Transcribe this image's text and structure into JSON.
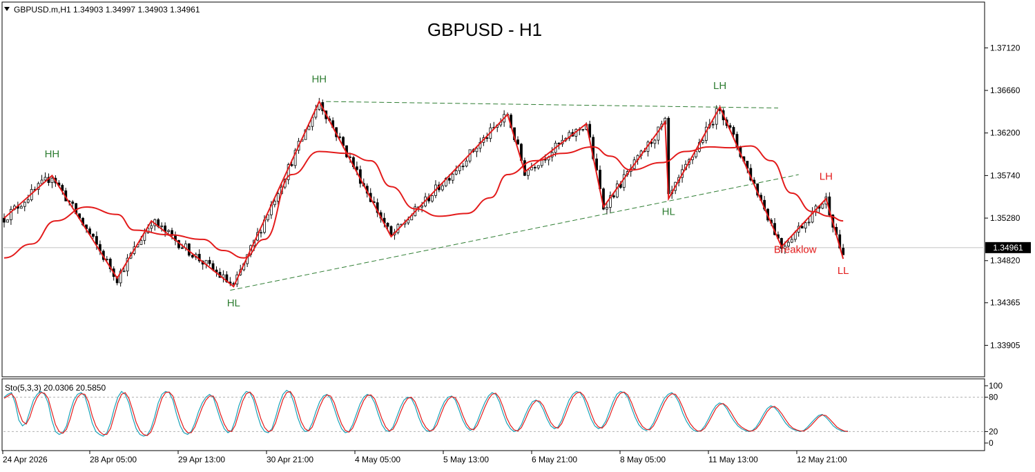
{
  "header": {
    "symbol_info": "GBPUSD.m,H1  1.34903 1.34997 1.34903 1.34961",
    "collapse_icon": "triangle-down-icon"
  },
  "chart_data": [
    {
      "type": "candlestick",
      "title": "GBPUSD - H1",
      "ylim": [
        1.3358,
        1.376
      ],
      "y_ticks": [
        "1.37120",
        "1.36660",
        "1.36200",
        "1.35740",
        "1.35280",
        "1.34820",
        "1.34365",
        "1.33905"
      ],
      "x_ticks": [
        "24 Apr 2026",
        "28 Apr 05:00",
        "29 Apr 13:00",
        "30 Apr 21:00",
        "4 May 05:00",
        "5 May 13:00",
        "6 May 21:00",
        "8 May 05:00",
        "11 May 13:00",
        "12 May 21:00"
      ],
      "bar_count": 245,
      "current_price": "1.34961",
      "current_price_value": 1.34961,
      "colors": {
        "candle": "#000000",
        "zigzag": "#e31b1b",
        "moving_average": "#e31b1b",
        "trendline": "#2e7d32",
        "bullish_label": "#2e7d32",
        "bearish_label": "#e31b1b",
        "price_line": "#c0c0c0"
      },
      "zigzag": [
        {
          "bar": 0,
          "price": 1.3528
        },
        {
          "bar": 14,
          "price": 1.3574
        },
        {
          "bar": 33,
          "price": 1.3463
        },
        {
          "bar": 43,
          "price": 1.3525
        },
        {
          "bar": 67,
          "price": 1.3454
        },
        {
          "bar": 92,
          "price": 1.3654
        },
        {
          "bar": 113,
          "price": 1.3508
        },
        {
          "bar": 147,
          "price": 1.364
        },
        {
          "bar": 152,
          "price": 1.3578
        },
        {
          "bar": 170,
          "price": 1.363
        },
        {
          "bar": 175,
          "price": 1.354
        },
        {
          "bar": 193,
          "price": 1.3632
        },
        {
          "bar": 194,
          "price": 1.3549
        },
        {
          "bar": 209,
          "price": 1.3648
        },
        {
          "bar": 227,
          "price": 1.3497
        },
        {
          "bar": 240,
          "price": 1.3549
        },
        {
          "bar": 245,
          "price": 1.3484
        }
      ],
      "moving_average": [
        {
          "bar": 0,
          "price": 1.3485
        },
        {
          "bar": 8,
          "price": 1.35
        },
        {
          "bar": 15,
          "price": 1.3525
        },
        {
          "bar": 24,
          "price": 1.354
        },
        {
          "bar": 33,
          "price": 1.3532
        },
        {
          "bar": 38,
          "price": 1.3515
        },
        {
          "bar": 48,
          "price": 1.351
        },
        {
          "bar": 58,
          "price": 1.3505
        },
        {
          "bar": 64,
          "price": 1.3493
        },
        {
          "bar": 70,
          "price": 1.3485
        },
        {
          "bar": 76,
          "price": 1.3505
        },
        {
          "bar": 84,
          "price": 1.3575
        },
        {
          "bar": 92,
          "price": 1.36
        },
        {
          "bar": 100,
          "price": 1.3598
        },
        {
          "bar": 107,
          "price": 1.359
        },
        {
          "bar": 113,
          "price": 1.3562
        },
        {
          "bar": 120,
          "price": 1.3538
        },
        {
          "bar": 127,
          "price": 1.353
        },
        {
          "bar": 135,
          "price": 1.3533
        },
        {
          "bar": 142,
          "price": 1.355
        },
        {
          "bar": 147,
          "price": 1.3575
        },
        {
          "bar": 155,
          "price": 1.359
        },
        {
          "bar": 163,
          "price": 1.3598
        },
        {
          "bar": 172,
          "price": 1.3605
        },
        {
          "bar": 177,
          "price": 1.3595
        },
        {
          "bar": 183,
          "price": 1.358
        },
        {
          "bar": 192,
          "price": 1.3588
        },
        {
          "bar": 199,
          "price": 1.36
        },
        {
          "bar": 206,
          "price": 1.3605
        },
        {
          "bar": 212,
          "price": 1.3604
        },
        {
          "bar": 218,
          "price": 1.3606
        },
        {
          "bar": 224,
          "price": 1.359
        },
        {
          "bar": 230,
          "price": 1.3555
        },
        {
          "bar": 236,
          "price": 1.3535
        },
        {
          "bar": 241,
          "price": 1.353
        },
        {
          "bar": 245,
          "price": 1.3525
        }
      ],
      "trendlines": [
        {
          "from": {
            "bar": 66,
            "price": 1.345
          },
          "to": {
            "bar": 232,
            "price": 1.3575
          }
        },
        {
          "from": {
            "bar": 94,
            "price": 1.3654
          },
          "to": {
            "bar": 226,
            "price": 1.3647
          }
        }
      ],
      "wave_labels": [
        {
          "text": "HH",
          "bar": 14,
          "price": 1.35935,
          "kind": "bullish"
        },
        {
          "text": "HH",
          "bar": 92,
          "price": 1.36745,
          "kind": "bullish"
        },
        {
          "text": "LH",
          "bar": 209,
          "price": 1.36675,
          "kind": "bullish"
        },
        {
          "text": "HL",
          "bar": 67,
          "price": 1.34325,
          "kind": "bullish"
        },
        {
          "text": "HL",
          "bar": 194,
          "price": 1.35315,
          "kind": "bullish"
        },
        {
          "text": "LH",
          "bar": 240,
          "price": 1.35695,
          "kind": "bearish"
        },
        {
          "text": "Breaklow",
          "bar": 231,
          "price": 1.34905,
          "kind": "bearish"
        },
        {
          "text": "LL",
          "bar": 245,
          "price": 1.34675,
          "kind": "bearish"
        }
      ]
    },
    {
      "type": "line",
      "indicator_label": "Sto(5,3,3) 20.0306 20.5850",
      "ylim": [
        0,
        100
      ],
      "y_ticks": [
        "100",
        "80",
        "20",
        "0"
      ],
      "levels": [
        20,
        80
      ],
      "series": [
        {
          "color": "#17a2b8",
          "values": [
            80,
            85,
            88,
            70,
            40,
            30,
            35,
            55,
            75,
            85,
            90,
            85,
            70,
            40,
            20,
            15,
            18,
            30,
            55,
            75,
            85,
            88,
            82,
            60,
            35,
            20,
            15,
            12,
            18,
            35,
            60,
            80,
            90,
            85,
            70,
            45,
            25,
            15,
            12,
            14,
            25,
            45,
            70,
            85,
            90,
            88,
            75,
            50,
            30,
            18,
            15,
            20,
            35,
            55,
            70,
            80,
            85,
            80,
            60,
            40,
            25,
            18,
            22,
            40,
            65,
            82,
            90,
            88,
            75,
            50,
            30,
            20,
            18,
            25,
            45,
            68,
            85,
            92,
            88,
            70,
            45,
            28,
            20,
            22,
            35,
            55,
            72,
            82,
            85,
            78,
            60,
            40,
            25,
            18,
            20,
            32,
            50,
            68,
            80,
            85,
            82,
            70,
            50,
            32,
            22,
            20,
            28,
            45,
            62,
            75,
            80,
            78,
            65,
            45,
            30,
            22,
            20,
            25,
            40,
            58,
            72,
            80,
            82,
            75,
            58,
            40,
            28,
            22,
            25,
            38,
            55,
            70,
            82,
            88,
            85,
            72,
            52,
            35,
            25,
            20,
            22,
            32,
            48,
            62,
            72,
            75,
            70,
            58,
            42,
            30,
            25,
            28,
            40,
            58,
            75,
            85,
            90,
            88,
            78,
            60,
            42,
            30,
            25,
            28,
            38,
            55,
            72,
            85,
            90,
            88,
            80,
            62,
            45,
            32,
            25,
            22,
            25,
            35,
            50,
            65,
            78,
            85,
            88,
            82,
            70,
            52,
            38,
            28,
            22,
            20,
            22,
            30,
            42,
            55,
            65,
            70,
            68,
            60,
            48,
            38,
            30,
            25,
            22,
            20,
            22,
            28,
            38,
            50,
            60,
            65,
            62,
            55,
            45,
            35,
            28,
            24,
            22,
            20,
            22,
            28,
            35,
            42,
            48,
            50,
            45,
            38,
            30,
            25,
            22,
            20,
            21
          ]
        },
        {
          "color": "#e31b1b",
          "values": [
            78,
            82,
            86,
            78,
            55,
            38,
            33,
            45,
            65,
            80,
            88,
            87,
            78,
            55,
            32,
            20,
            17,
            24,
            42,
            65,
            80,
            86,
            85,
            72,
            48,
            30,
            20,
            15,
            15,
            25,
            47,
            70,
            85,
            88,
            78,
            58,
            36,
            22,
            15,
            13,
            19,
            35,
            58,
            78,
            88,
            89,
            82,
            62,
            42,
            26,
            18,
            18,
            28,
            45,
            62,
            75,
            82,
            82,
            70,
            50,
            33,
            22,
            20,
            31,
            52,
            73,
            86,
            89,
            82,
            63,
            42,
            27,
            20,
            22,
            35,
            56,
            76,
            88,
            90,
            80,
            58,
            37,
            25,
            21,
            28,
            45,
            63,
            77,
            84,
            82,
            70,
            50,
            33,
            22,
            19,
            26,
            41,
            59,
            74,
            83,
            84,
            77,
            60,
            42,
            28,
            21,
            24,
            36,
            53,
            68,
            78,
            80,
            72,
            56,
            38,
            27,
            21,
            23,
            32,
            49,
            65,
            76,
            81,
            79,
            67,
            49,
            34,
            25,
            23,
            31,
            46,
            62,
            76,
            85,
            87,
            79,
            63,
            44,
            31,
            23,
            21,
            27,
            40,
            55,
            67,
            74,
            73,
            65,
            50,
            36,
            28,
            26,
            34,
            49,
            66,
            80,
            87,
            89,
            83,
            70,
            52,
            36,
            28,
            26,
            33,
            46,
            63,
            78,
            87,
            89,
            84,
            71,
            54,
            39,
            29,
            24,
            23,
            30,
            42,
            57,
            71,
            81,
            86,
            85,
            76,
            62,
            46,
            34,
            26,
            21,
            21,
            26,
            36,
            48,
            60,
            67,
            69,
            64,
            55,
            44,
            34,
            28,
            24,
            21,
            21,
            25,
            33,
            44,
            55,
            62,
            64,
            59,
            51,
            41,
            32,
            26,
            23,
            21,
            21,
            25,
            31,
            38,
            45,
            49,
            48,
            42,
            35,
            28,
            24,
            21,
            20
          ]
        }
      ]
    }
  ]
}
